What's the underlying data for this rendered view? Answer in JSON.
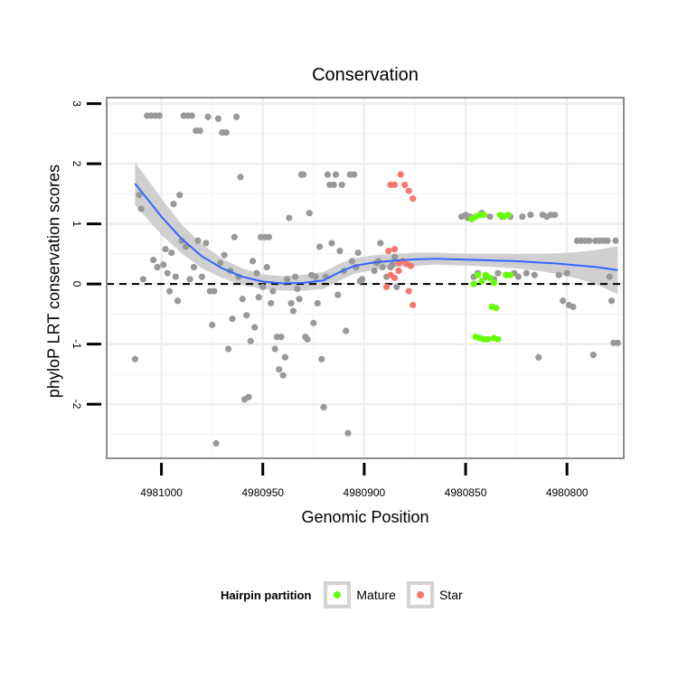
{
  "chart_data": {
    "type": "scatter",
    "title": "Conservation",
    "xlabel": "Genomic Position",
    "ylabel": "phyloP LRT conservation scores",
    "xlim": [
      4981027,
      4980772
    ],
    "ylim": [
      -2.9,
      3.1
    ],
    "x_reversed": true,
    "xticks": [
      4981000,
      4980950,
      4980900,
      4980850,
      4980800
    ],
    "yticks": [
      -2,
      -1,
      0,
      1,
      2,
      3
    ],
    "x_tick_labels": [
      "4981000",
      "4980950",
      "4980900",
      "4980850",
      "4980800"
    ],
    "y_tick_labels": [
      "-2",
      "-1",
      "0",
      "1",
      "2",
      "3"
    ],
    "reference_line": {
      "y": 0,
      "style": "dashed"
    },
    "legend": {
      "title": "Hairpin partition",
      "position": "bottom",
      "entries": [
        {
          "label": "Mature",
          "color": "#66ff00"
        },
        {
          "label": "Star",
          "color": "#f8766d"
        }
      ]
    },
    "colors": {
      "other": "#999999",
      "smooth_line": "#3366ff",
      "ribbon": "#c8c8c8"
    },
    "series": [
      {
        "name": "Other",
        "points": [
          [
            4981013,
            -1.25
          ],
          [
            4981011,
            1.48
          ],
          [
            4981010,
            1.25
          ],
          [
            4981009,
            0.08
          ],
          [
            4981007,
            2.8
          ],
          [
            4981005,
            2.8
          ],
          [
            4981003,
            2.8
          ],
          [
            4981001,
            2.8
          ],
          [
            4981004,
            0.4
          ],
          [
            4981002,
            0.28
          ],
          [
            4980999,
            0.32
          ],
          [
            4980998,
            0.58
          ],
          [
            4980997,
            0.18
          ],
          [
            4980996,
            -0.12
          ],
          [
            4980995,
            0.52
          ],
          [
            4980994,
            1.33
          ],
          [
            4980993,
            0.12
          ],
          [
            4980992,
            -0.28
          ],
          [
            4980991,
            1.48
          ],
          [
            4980990,
            0.72
          ],
          [
            4980989,
            2.8
          ],
          [
            4980987,
            2.8
          ],
          [
            4980985,
            2.8
          ],
          [
            4980988,
            0.62
          ],
          [
            4980986,
            0.08
          ],
          [
            4980984,
            0.28
          ],
          [
            4980983,
            2.55
          ],
          [
            4980981,
            2.55
          ],
          [
            4980982,
            0.72
          ],
          [
            4980980,
            0.12
          ],
          [
            4980978,
            0.68
          ],
          [
            4980977,
            2.78
          ],
          [
            4980976,
            -0.12
          ],
          [
            4980975,
            -0.68
          ],
          [
            4980974,
            -0.12
          ],
          [
            4980973,
            -2.65
          ],
          [
            4980972,
            2.75
          ],
          [
            4980971,
            0.35
          ],
          [
            4980970,
            2.52
          ],
          [
            4980968,
            2.52
          ],
          [
            4980969,
            0.48
          ],
          [
            4980967,
            -1.08
          ],
          [
            4980966,
            0.22
          ],
          [
            4980965,
            -0.58
          ],
          [
            4980964,
            0.78
          ],
          [
            4980963,
            2.78
          ],
          [
            4980962,
            0.12
          ],
          [
            4980961,
            1.78
          ],
          [
            4980960,
            -0.25
          ],
          [
            4980959,
            -1.92
          ],
          [
            4980958,
            -0.52
          ],
          [
            4980957,
            -1.88
          ],
          [
            4980956,
            -0.95
          ],
          [
            4980955,
            0.38
          ],
          [
            4980954,
            -0.72
          ],
          [
            4980953,
            0.18
          ],
          [
            4980952,
            -0.22
          ],
          [
            4980951,
            0.78
          ],
          [
            4980949,
            0.78
          ],
          [
            4980947,
            0.78
          ],
          [
            4980950,
            -0.05
          ],
          [
            4980948,
            0.28
          ],
          [
            4980946,
            -0.32
          ],
          [
            4980945,
            -0.12
          ],
          [
            4980944,
            -1.08
          ],
          [
            4980943,
            -0.88
          ],
          [
            4980942,
            -1.42
          ],
          [
            4980941,
            -0.88
          ],
          [
            4980940,
            -1.52
          ],
          [
            4980939,
            -1.22
          ],
          [
            4980938,
            0.08
          ],
          [
            4980937,
            1.1
          ],
          [
            4980936,
            -0.32
          ],
          [
            4980935,
            -0.45
          ],
          [
            4980934,
            0.12
          ],
          [
            4980933,
            -0.08
          ],
          [
            4980932,
            -0.25
          ],
          [
            4980931,
            1.82
          ],
          [
            4980930,
            1.82
          ],
          [
            4980929,
            -0.88
          ],
          [
            4980928,
            -0.92
          ],
          [
            4980927,
            1.18
          ],
          [
            4980926,
            0.15
          ],
          [
            4980925,
            -0.65
          ],
          [
            4980924,
            0.12
          ],
          [
            4980923,
            -0.32
          ],
          [
            4980922,
            0.62
          ],
          [
            4980921,
            -1.25
          ],
          [
            4980920,
            -2.05
          ],
          [
            4980919,
            0.12
          ],
          [
            4980918,
            1.82
          ],
          [
            4980917,
            1.65
          ],
          [
            4980916,
            0.68
          ],
          [
            4980915,
            1.65
          ],
          [
            4980914,
            1.82
          ],
          [
            4980913,
            -0.18
          ],
          [
            4980912,
            0.55
          ],
          [
            4980911,
            1.65
          ],
          [
            4980910,
            0.22
          ],
          [
            4980909,
            -0.78
          ],
          [
            4980908,
            -2.48
          ],
          [
            4980907,
            1.82
          ],
          [
            4980905,
            1.82
          ],
          [
            4980906,
            0.38
          ],
          [
            4980904,
            0.28
          ],
          [
            4980903,
            0.52
          ],
          [
            4980902,
            0.05
          ],
          [
            4980901,
            0.08
          ],
          [
            4980895,
            0.22
          ],
          [
            4980894,
            0.35
          ],
          [
            4980893,
            0.38
          ],
          [
            4980892,
            0.68
          ],
          [
            4980891,
            0.28
          ],
          [
            4980889,
            0.12
          ],
          [
            4980887,
            0.28
          ],
          [
            4980886,
            0.32
          ],
          [
            4980885,
            0.45
          ],
          [
            4980884,
            -0.05
          ],
          [
            4980852,
            1.12
          ],
          [
            4980850,
            1.15
          ],
          [
            4980849,
            1.1
          ],
          [
            4980848,
            1.12
          ],
          [
            4980846,
            0.12
          ],
          [
            4980844,
            0.18
          ],
          [
            4980842,
            1.18
          ],
          [
            4980840,
            0.12
          ],
          [
            4980838,
            1.12
          ],
          [
            4980836,
            0.08
          ],
          [
            4980834,
            0.18
          ],
          [
            4980832,
            1.12
          ],
          [
            4980830,
            0.15
          ],
          [
            4980828,
            1.12
          ],
          [
            4980826,
            0.18
          ],
          [
            4980824,
            0.12
          ],
          [
            4980822,
            1.12
          ],
          [
            4980820,
            0.18
          ],
          [
            4980818,
            1.15
          ],
          [
            4980816,
            0.15
          ],
          [
            4980814,
            -1.22
          ],
          [
            4980812,
            1.15
          ],
          [
            4980810,
            1.12
          ],
          [
            4980808,
            1.15
          ],
          [
            4980806,
            1.15
          ],
          [
            4980804,
            0.15
          ],
          [
            4980802,
            -0.28
          ],
          [
            4980800,
            0.18
          ],
          [
            4980799,
            -0.35
          ],
          [
            4980797,
            -0.38
          ],
          [
            4980795,
            0.72
          ],
          [
            4980793,
            0.72
          ],
          [
            4980791,
            0.72
          ],
          [
            4980789,
            0.72
          ],
          [
            4980787,
            -1.18
          ],
          [
            4980786,
            0.72
          ],
          [
            4980784,
            0.72
          ],
          [
            4980782,
            0.72
          ],
          [
            4980780,
            0.72
          ],
          [
            4980778,
            -0.28
          ],
          [
            4980776,
            0.72
          ],
          [
            4980777,
            -0.98
          ],
          [
            4980775,
            -0.98
          ],
          [
            4980779,
            0.12
          ]
        ]
      },
      {
        "name": "Mature",
        "points": [
          [
            4980847,
            1.08
          ],
          [
            4980845,
            1.12
          ],
          [
            4980843,
            1.15
          ],
          [
            4980841,
            1.15
          ],
          [
            4980846,
            0.0
          ],
          [
            4980844,
            0.15
          ],
          [
            4980845,
            -0.88
          ],
          [
            4980843,
            -0.9
          ],
          [
            4980841,
            -0.92
          ],
          [
            4980839,
            -0.92
          ],
          [
            4980842,
            0.05
          ],
          [
            4980840,
            0.15
          ],
          [
            4980838,
            0.1
          ],
          [
            4980836,
            0.02
          ],
          [
            4980837,
            -0.38
          ],
          [
            4980835,
            -0.4
          ],
          [
            4980836,
            -0.9
          ],
          [
            4980834,
            -0.92
          ],
          [
            4980833,
            1.15
          ],
          [
            4980831,
            1.12
          ],
          [
            4980829,
            1.15
          ],
          [
            4980830,
            0.15
          ],
          [
            4980828,
            0.15
          ]
        ]
      },
      {
        "name": "Star",
        "points": [
          [
            4980887,
            1.65
          ],
          [
            4980885,
            1.65
          ],
          [
            4980882,
            1.82
          ],
          [
            4980880,
            1.65
          ],
          [
            4980878,
            1.55
          ],
          [
            4980876,
            1.42
          ],
          [
            4980888,
            0.55
          ],
          [
            4980885,
            0.58
          ],
          [
            4980883,
            0.35
          ],
          [
            4980881,
            0.38
          ],
          [
            4980879,
            0.33
          ],
          [
            4980877,
            0.3
          ],
          [
            4980887,
            0.15
          ],
          [
            4980885,
            0.1
          ],
          [
            4980883,
            0.22
          ],
          [
            4980889,
            -0.05
          ],
          [
            4980878,
            -0.12
          ],
          [
            4980876,
            -0.35
          ]
        ]
      }
    ],
    "smooth_curve": [
      [
        4981013,
        1.67
      ],
      [
        4981000,
        1.12
      ],
      [
        4980990,
        0.75
      ],
      [
        4980980,
        0.46
      ],
      [
        4980970,
        0.26
      ],
      [
        4980960,
        0.12
      ],
      [
        4980950,
        0.04
      ],
      [
        4980940,
        0.01
      ],
      [
        4980930,
        0.02
      ],
      [
        4980920,
        0.06
      ],
      [
        4980912,
        0.2
      ],
      [
        4980905,
        0.3
      ],
      [
        4980895,
        0.36
      ],
      [
        4980885,
        0.39
      ],
      [
        4980875,
        0.41
      ],
      [
        4980865,
        0.42
      ],
      [
        4980855,
        0.41
      ],
      [
        4980845,
        0.4
      ],
      [
        4980835,
        0.39
      ],
      [
        4980825,
        0.38
      ],
      [
        4980815,
        0.36
      ],
      [
        4980805,
        0.34
      ],
      [
        4980795,
        0.31
      ],
      [
        4980785,
        0.28
      ],
      [
        4980775,
        0.23
      ]
    ],
    "ribbon_halfwidth": [
      0.36,
      0.3,
      0.24,
      0.2,
      0.16,
      0.14,
      0.12,
      0.12,
      0.13,
      0.14,
      0.14,
      0.13,
      0.12,
      0.11,
      0.11,
      0.1,
      0.1,
      0.1,
      0.11,
      0.12,
      0.14,
      0.17,
      0.22,
      0.29,
      0.4
    ]
  }
}
